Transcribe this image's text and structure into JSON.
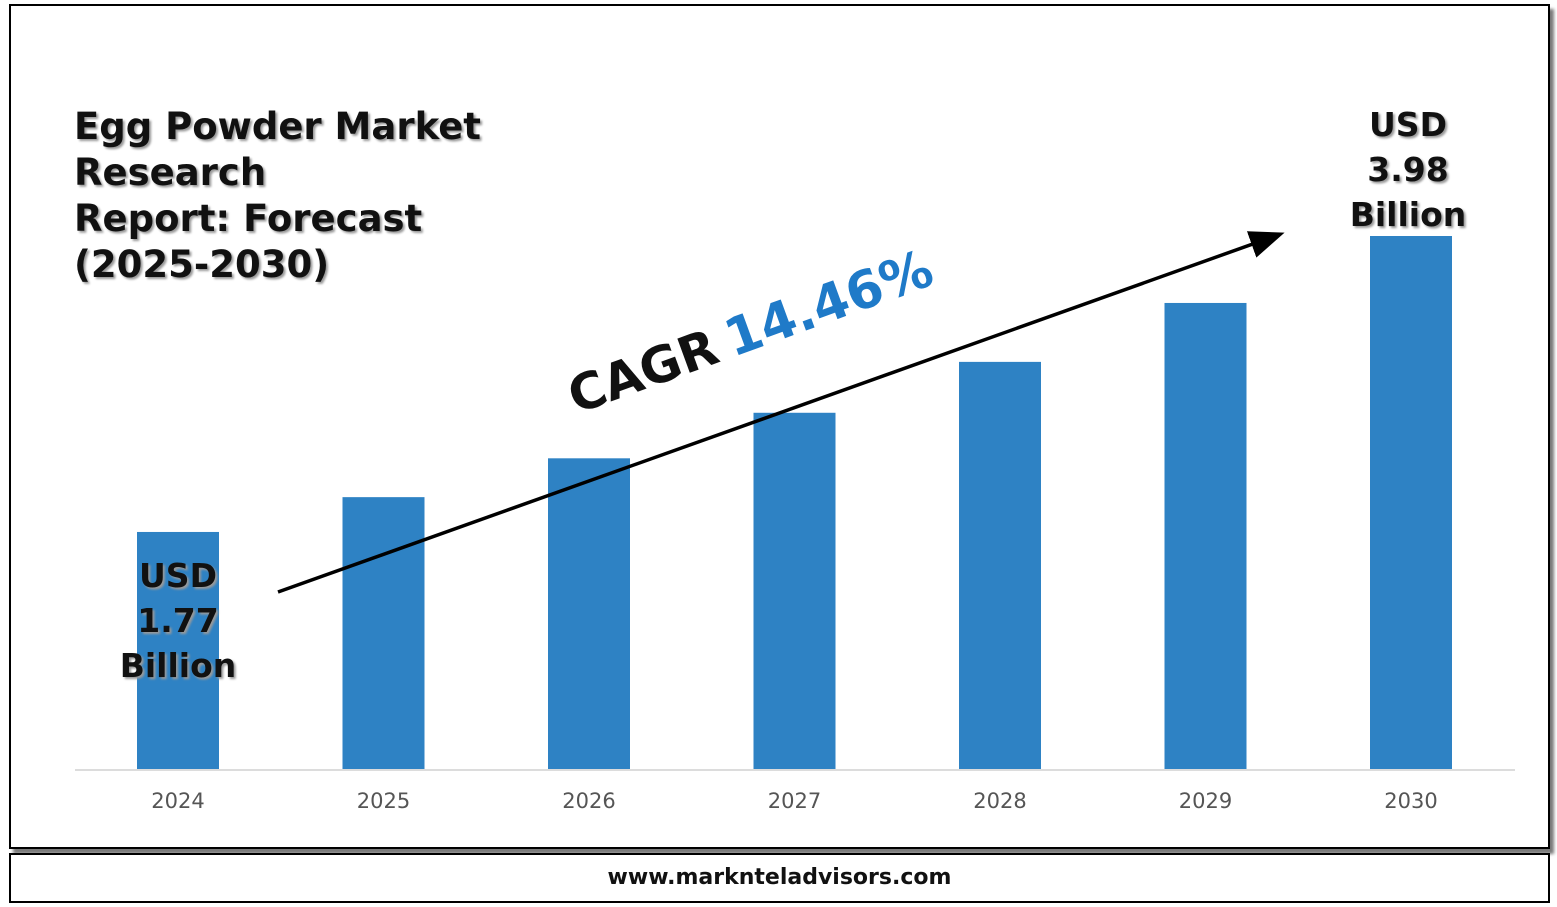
{
  "title_lines": [
    "Egg Powder Market Research",
    "Report: Forecast",
    "(2025-2030)"
  ],
  "start_callout": [
    "USD",
    "1.77",
    "Billion"
  ],
  "end_callout": [
    "USD",
    "3.98",
    "Billion"
  ],
  "cagr": {
    "label": "CAGR",
    "value": "14.46%"
  },
  "footer": "www.marknteladvisors.com",
  "colors": {
    "bar": "#2e82c4",
    "cagr_value": "#1f7ac8",
    "arrow": "#000000",
    "axis": "#d0d0d0"
  },
  "chart_data": {
    "type": "bar",
    "title": "Egg Powder Market Research Report: Forecast (2025-2030)",
    "categories": [
      "2024",
      "2025",
      "2026",
      "2027",
      "2028",
      "2029",
      "2030"
    ],
    "values": [
      1.77,
      2.03,
      2.32,
      2.66,
      3.04,
      3.48,
      3.98
    ],
    "ylim": [
      0,
      4.5
    ],
    "xlabel": "",
    "ylabel": "",
    "grid": false,
    "legend": "none"
  }
}
